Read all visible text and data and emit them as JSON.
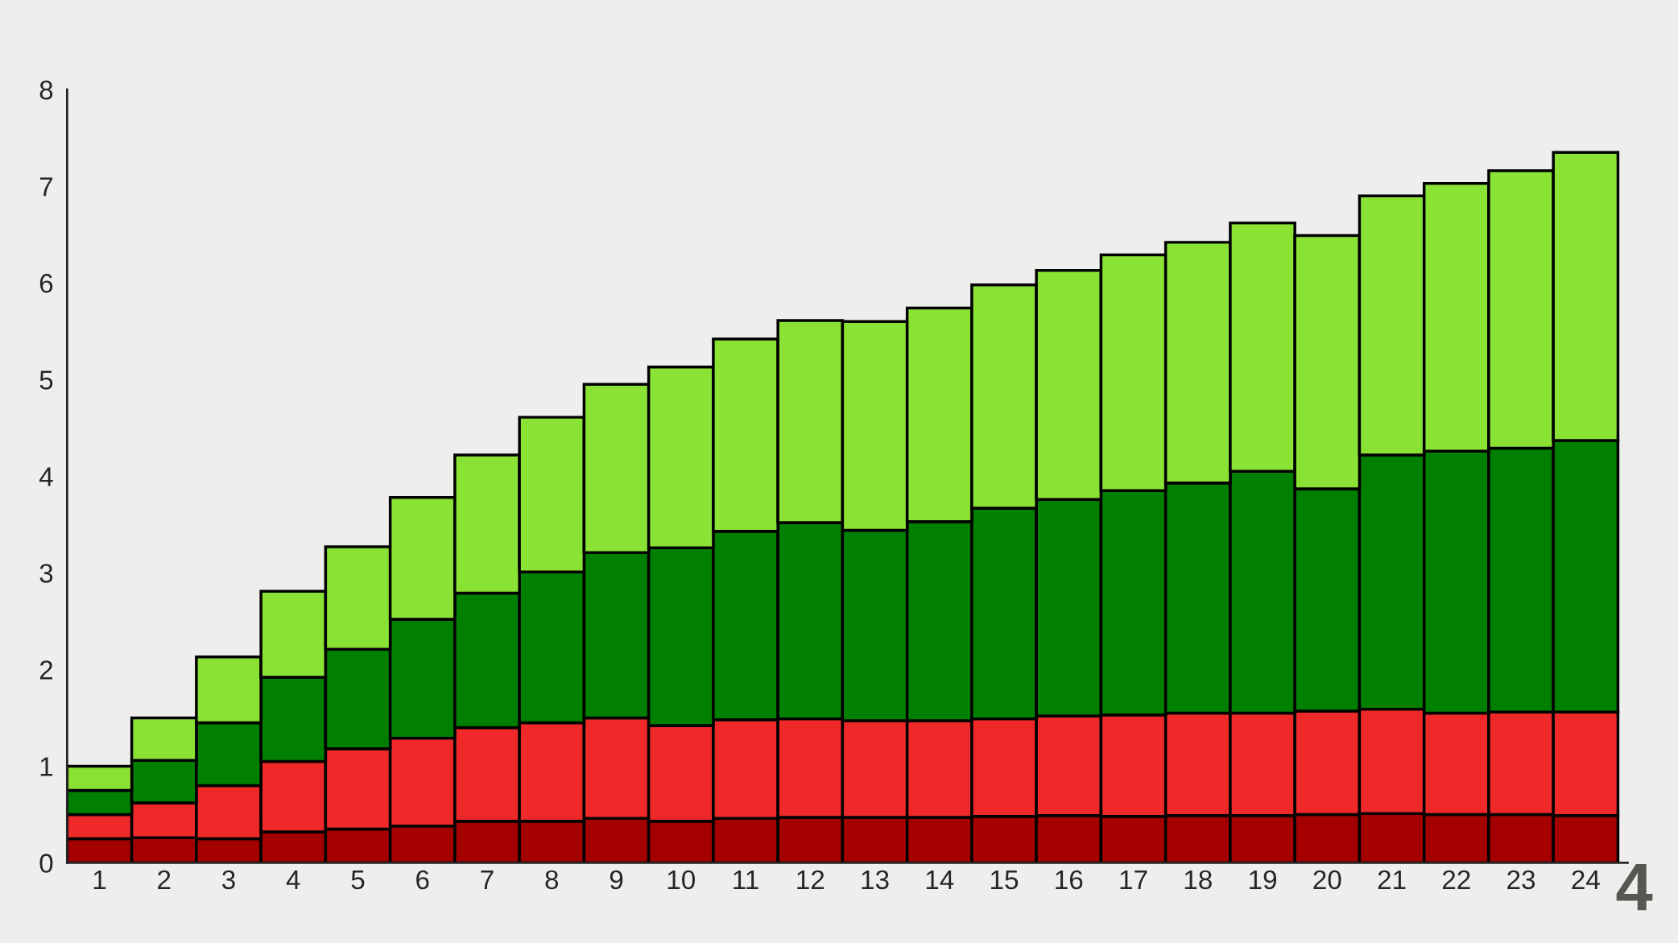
{
  "chart_data": {
    "type": "bar",
    "stacked": true,
    "categories": [
      "1",
      "2",
      "3",
      "4",
      "5",
      "6",
      "7",
      "8",
      "9",
      "10",
      "11",
      "12",
      "13",
      "14",
      "15",
      "16",
      "17",
      "18",
      "19",
      "20",
      "21",
      "22",
      "23",
      "24"
    ],
    "series": [
      {
        "color": "#a40000",
        "values": [
          0.25,
          0.26,
          0.25,
          0.32,
          0.35,
          0.38,
          0.43,
          0.43,
          0.46,
          0.43,
          0.46,
          0.47,
          0.47,
          0.47,
          0.48,
          0.49,
          0.48,
          0.49,
          0.49,
          0.5,
          0.51,
          0.5,
          0.5,
          0.49
        ]
      },
      {
        "color": "#ef2929",
        "values": [
          0.25,
          0.36,
          0.55,
          0.73,
          0.83,
          0.91,
          0.97,
          1.02,
          1.04,
          0.99,
          1.02,
          1.02,
          1.0,
          1.0,
          1.01,
          1.03,
          1.05,
          1.06,
          1.06,
          1.07,
          1.08,
          1.05,
          1.06,
          1.07
        ]
      },
      {
        "color": "#007f00",
        "values": [
          0.25,
          0.44,
          0.65,
          0.87,
          1.03,
          1.23,
          1.39,
          1.56,
          1.71,
          1.84,
          1.95,
          2.03,
          1.97,
          2.06,
          2.18,
          2.24,
          2.32,
          2.38,
          2.5,
          2.3,
          2.63,
          2.71,
          2.73,
          2.81
        ]
      },
      {
        "color": "#8ae234",
        "values": [
          0.25,
          0.44,
          0.68,
          0.89,
          1.06,
          1.26,
          1.43,
          1.6,
          1.74,
          1.87,
          1.99,
          2.09,
          2.16,
          2.21,
          2.31,
          2.37,
          2.44,
          2.49,
          2.57,
          2.62,
          2.68,
          2.77,
          2.87,
          2.98
        ]
      }
    ],
    "ylim": [
      0,
      8
    ],
    "yticks": [
      0,
      1,
      2,
      3,
      4,
      5,
      6,
      7,
      8
    ],
    "grid": false,
    "legend": false,
    "annotations": [
      "4"
    ]
  }
}
